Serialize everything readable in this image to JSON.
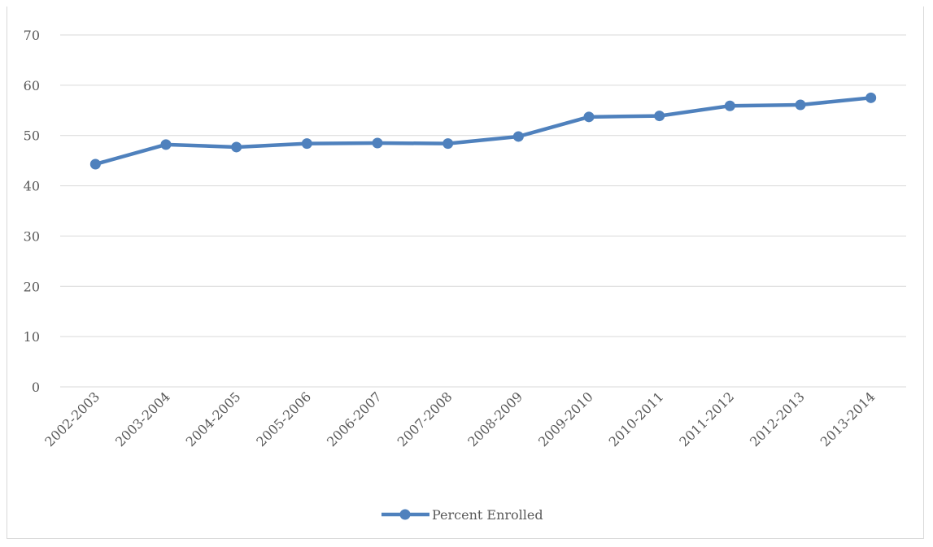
{
  "chart_data": {
    "type": "line",
    "title": "",
    "xlabel": "",
    "ylabel": "",
    "categories": [
      "2002-2003",
      "2003-2004",
      "2004-2005",
      "2005-2006",
      "2006-2007",
      "2007-2008",
      "2008-2009",
      "2009-2010",
      "2010-2011",
      "2011-2012",
      "2012-2013",
      "2013-2014"
    ],
    "series": [
      {
        "name": "Percent Enrolled",
        "color": "#4f81bd",
        "values": [
          44.3,
          48.2,
          47.7,
          48.4,
          48.5,
          48.4,
          49.8,
          53.7,
          53.9,
          55.9,
          56.1,
          57.5
        ]
      }
    ],
    "ylim": [
      0,
      70
    ],
    "yticks": [
      "0",
      "10",
      "20",
      "30",
      "40",
      "50",
      "60",
      "70"
    ],
    "grid": true,
    "legend_position": "bottom",
    "gridline_color": "#d9d9d9"
  }
}
